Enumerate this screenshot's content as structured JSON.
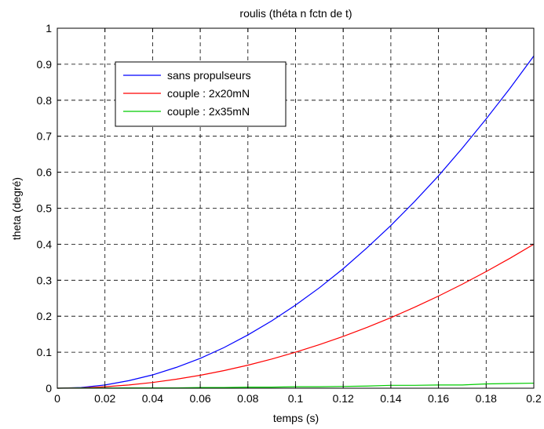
{
  "chart_data": {
    "type": "line",
    "title": "roulis (théta n fctn de t)",
    "xlabel": "temps (s)",
    "ylabel": "theta (degré)",
    "xlim": [
      0,
      0.2
    ],
    "ylim": [
      0,
      1
    ],
    "grid": true,
    "legend_position": "top-left",
    "x_ticks": [
      0,
      0.02,
      0.04,
      0.06,
      0.08,
      0.1,
      0.12,
      0.14,
      0.16,
      0.18,
      0.2
    ],
    "x_tick_labels": [
      "0",
      "0.02",
      "0.04",
      "0.06",
      "0.08",
      "0.1",
      "0.12",
      "0.14",
      "0.16",
      "0.18",
      "0.2"
    ],
    "y_ticks": [
      0,
      0.1,
      0.2,
      0.3,
      0.4,
      0.5,
      0.6,
      0.7,
      0.8,
      0.9,
      1
    ],
    "y_tick_labels": [
      "0",
      "0.1",
      "0.2",
      "0.3",
      "0.4",
      "0.5",
      "0.6",
      "0.7",
      "0.8",
      "0.9",
      "1"
    ],
    "x": [
      0,
      0.01,
      0.02,
      0.03,
      0.04,
      0.05,
      0.06,
      0.07,
      0.08,
      0.09,
      0.1,
      0.11,
      0.12,
      0.13,
      0.14,
      0.15,
      0.16,
      0.17,
      0.18,
      0.19,
      0.2
    ],
    "series": [
      {
        "name": "sans propulseurs",
        "color": "#0000ff",
        "values": [
          0,
          0.002,
          0.009,
          0.021,
          0.037,
          0.058,
          0.083,
          0.113,
          0.148,
          0.187,
          0.231,
          0.279,
          0.332,
          0.39,
          0.452,
          0.519,
          0.59,
          0.667,
          0.748,
          0.833,
          0.923
        ]
      },
      {
        "name": "couple : 2x20mN",
        "color": "#ff0000",
        "values": [
          0,
          0.001,
          0.004,
          0.009,
          0.016,
          0.025,
          0.036,
          0.049,
          0.064,
          0.081,
          0.1,
          0.121,
          0.144,
          0.169,
          0.196,
          0.225,
          0.256,
          0.289,
          0.324,
          0.361,
          0.4
        ]
      },
      {
        "name": "couple : 2x35mN",
        "color": "#00cc00",
        "values": [
          0,
          0.0005,
          0.0005,
          0.001,
          0.001,
          0.001,
          0.002,
          0.002,
          0.003,
          0.003,
          0.004,
          0.004,
          0.005,
          0.006,
          0.008,
          0.008,
          0.009,
          0.009,
          0.012,
          0.013,
          0.014
        ]
      }
    ]
  }
}
